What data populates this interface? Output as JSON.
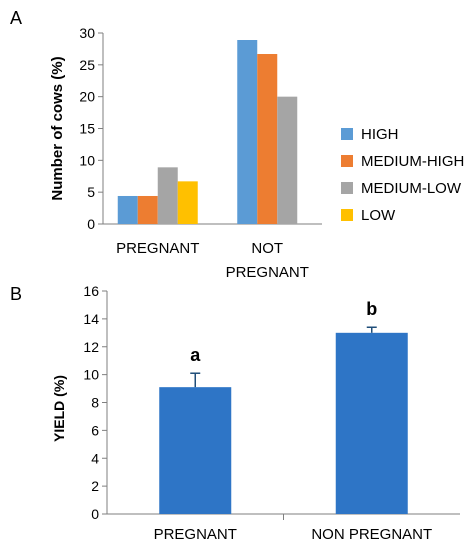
{
  "colors": {
    "high": "#5B9BD5",
    "medium_high": "#ED7D31",
    "medium_low": "#A5A5A5",
    "low": "#FFC000",
    "yield_bar": "#2E75C6"
  },
  "chart_data": [
    {
      "panel_label": "A",
      "type": "bar",
      "categories": [
        [
          "PREGNANT"
        ],
        [
          "NOT",
          "PREGNANT"
        ]
      ],
      "ylabel": "Number of cows (%)",
      "ylim": [
        0,
        30
      ],
      "yticks": [
        0,
        5,
        10,
        15,
        20,
        25,
        30
      ],
      "legend_position": "right",
      "series": [
        {
          "name": "HIGH",
          "color": "#5B9BD5",
          "values": [
            4.4,
            28.9
          ]
        },
        {
          "name": "MEDIUM-HIGH",
          "color": "#ED7D31",
          "values": [
            4.4,
            26.7
          ]
        },
        {
          "name": "MEDIUM-LOW",
          "color": "#A5A5A5",
          "values": [
            8.9,
            20.0
          ]
        },
        {
          "name": "LOW",
          "color": "#FFC000",
          "values": [
            6.7,
            0
          ]
        }
      ]
    },
    {
      "panel_label": "B",
      "type": "bar",
      "categories": [
        [
          "PREGNANT"
        ],
        [
          "NON PREGNANT"
        ]
      ],
      "ylabel": "YIELD (%)",
      "ylim": [
        0,
        16
      ],
      "yticks": [
        0,
        2,
        4,
        6,
        8,
        10,
        12,
        14,
        16
      ],
      "series": [
        {
          "color": "#2E75C6",
          "values": [
            9.1,
            13.0
          ],
          "errors": [
            1.0,
            0.4
          ],
          "significance": [
            "a",
            "b"
          ]
        }
      ]
    }
  ]
}
